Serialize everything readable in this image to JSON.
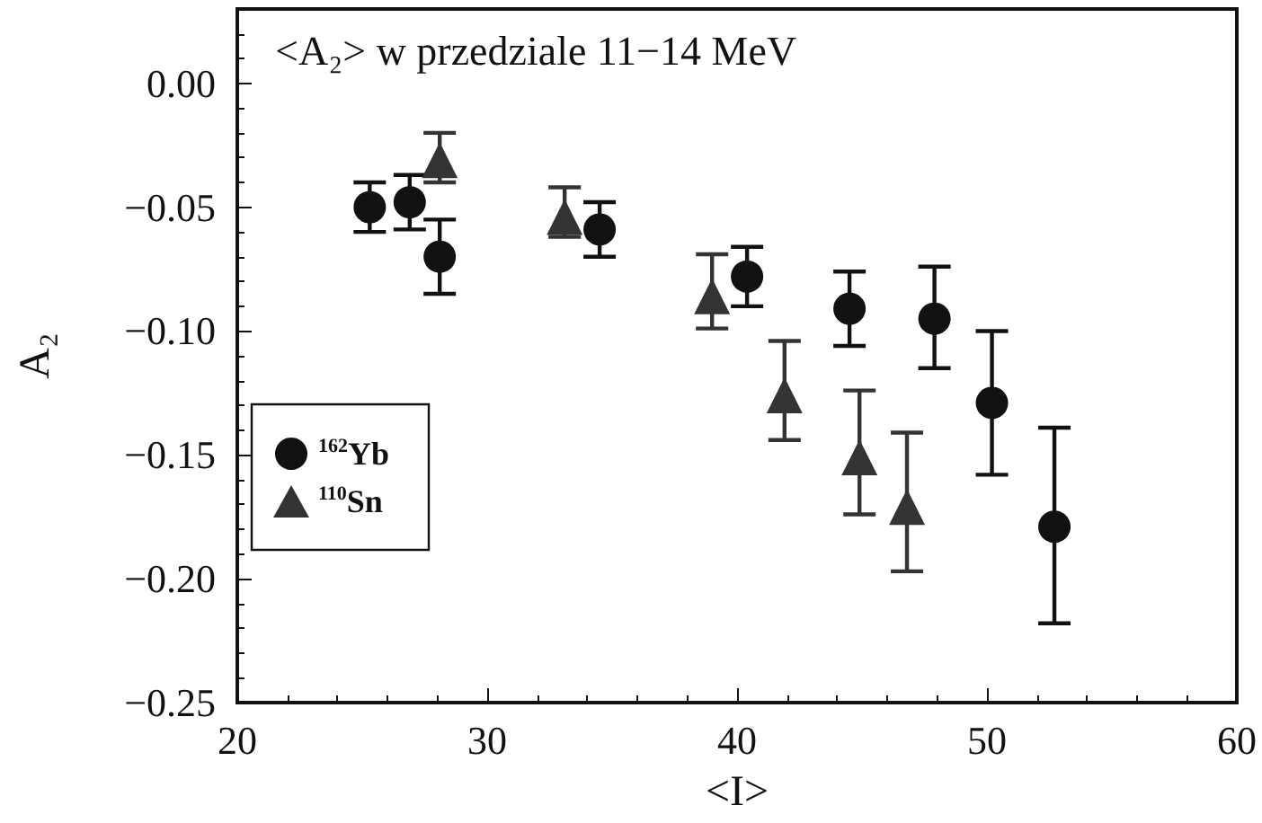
{
  "chart_data": {
    "type": "scatter",
    "title": "<A₂> w przedziale 11−14 MeV",
    "xlabel": "<I>",
    "ylabel": "A₂",
    "xlim": [
      20,
      60
    ],
    "xticks": [
      20,
      30,
      40,
      50,
      60
    ],
    "ylim": [
      -0.25,
      0.03
    ],
    "yticks": [
      {
        "value": 0,
        "label": "0.00"
      },
      {
        "value": -0.05,
        "label": "−0.05"
      },
      {
        "value": -0.1,
        "label": "−0.10"
      },
      {
        "value": -0.15,
        "label": "−0.15"
      },
      {
        "value": -0.2,
        "label": "−0.20"
      },
      {
        "value": -0.25,
        "label": "−0.25"
      }
    ],
    "grid": false,
    "legend": "left",
    "series": [
      {
        "name": "$^{162}$Yb",
        "color": "#111111",
        "marker": "circle",
        "x": [
          25.3,
          26.9,
          28.1,
          34.5,
          40.4,
          44.5,
          47.9,
          50.2,
          52.7
        ],
        "values": [
          -0.05,
          -0.048,
          -0.07,
          -0.059,
          -0.078,
          -0.091,
          -0.095,
          -0.129,
          -0.179
        ],
        "errors": [
          [
            -0.06,
            -0.04
          ],
          [
            -0.059,
            -0.037
          ],
          [
            -0.085,
            -0.055
          ],
          [
            -0.07,
            -0.048
          ],
          [
            -0.09,
            -0.066
          ],
          [
            -0.106,
            -0.076
          ],
          [
            -0.115,
            -0.074
          ],
          [
            -0.158,
            -0.1
          ],
          [
            -0.218,
            -0.139
          ]
        ]
      },
      {
        "name": "$^{110}$Sn",
        "color": "#333333",
        "marker": "triangle",
        "x": [
          28.1,
          33.1,
          39.0,
          41.9,
          44.9,
          46.8
        ],
        "values": [
          -0.031,
          -0.054,
          -0.086,
          -0.126,
          -0.151,
          -0.171
        ],
        "errors": [
          [
            -0.04,
            -0.02
          ],
          [
            -0.062,
            -0.042
          ],
          [
            -0.099,
            -0.069
          ],
          [
            -0.144,
            -0.104
          ],
          [
            -0.174,
            -0.124
          ],
          [
            -0.197,
            -0.141
          ]
        ]
      }
    ]
  }
}
